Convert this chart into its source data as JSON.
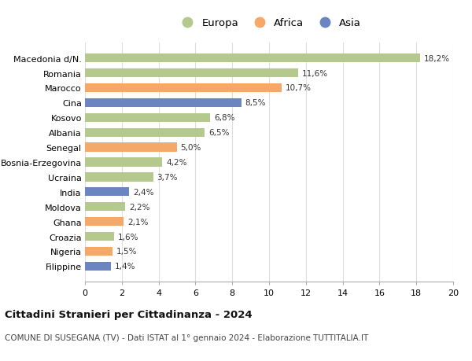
{
  "categories": [
    "Filippine",
    "Nigeria",
    "Croazia",
    "Ghana",
    "Moldova",
    "India",
    "Ucraina",
    "Bosnia-Erzegovina",
    "Senegal",
    "Albania",
    "Kosovo",
    "Cina",
    "Marocco",
    "Romania",
    "Macedonia d/N."
  ],
  "values": [
    1.4,
    1.5,
    1.6,
    2.1,
    2.2,
    2.4,
    3.7,
    4.2,
    5.0,
    6.5,
    6.8,
    8.5,
    10.7,
    11.6,
    18.2
  ],
  "labels": [
    "1,4%",
    "1,5%",
    "1,6%",
    "2,1%",
    "2,2%",
    "2,4%",
    "3,7%",
    "4,2%",
    "5,0%",
    "6,5%",
    "6,8%",
    "8,5%",
    "10,7%",
    "11,6%",
    "18,2%"
  ],
  "continents": [
    "Asia",
    "Africa",
    "Europa",
    "Africa",
    "Europa",
    "Asia",
    "Europa",
    "Europa",
    "Africa",
    "Europa",
    "Europa",
    "Asia",
    "Africa",
    "Europa",
    "Europa"
  ],
  "colors": {
    "Europa": "#b5c98e",
    "Africa": "#f4a86a",
    "Asia": "#6b85c0"
  },
  "legend_labels": [
    "Europa",
    "Africa",
    "Asia"
  ],
  "title1": "Cittadini Stranieri per Cittadinanza - 2024",
  "title2": "COMUNE DI SUSEGANA (TV) - Dati ISTAT al 1° gennaio 2024 - Elaborazione TUTTITALIA.IT",
  "xlim": [
    0,
    20
  ],
  "xticks": [
    0,
    2,
    4,
    6,
    8,
    10,
    12,
    14,
    16,
    18,
    20
  ],
  "background_color": "#ffffff",
  "grid_color": "#dddddd"
}
